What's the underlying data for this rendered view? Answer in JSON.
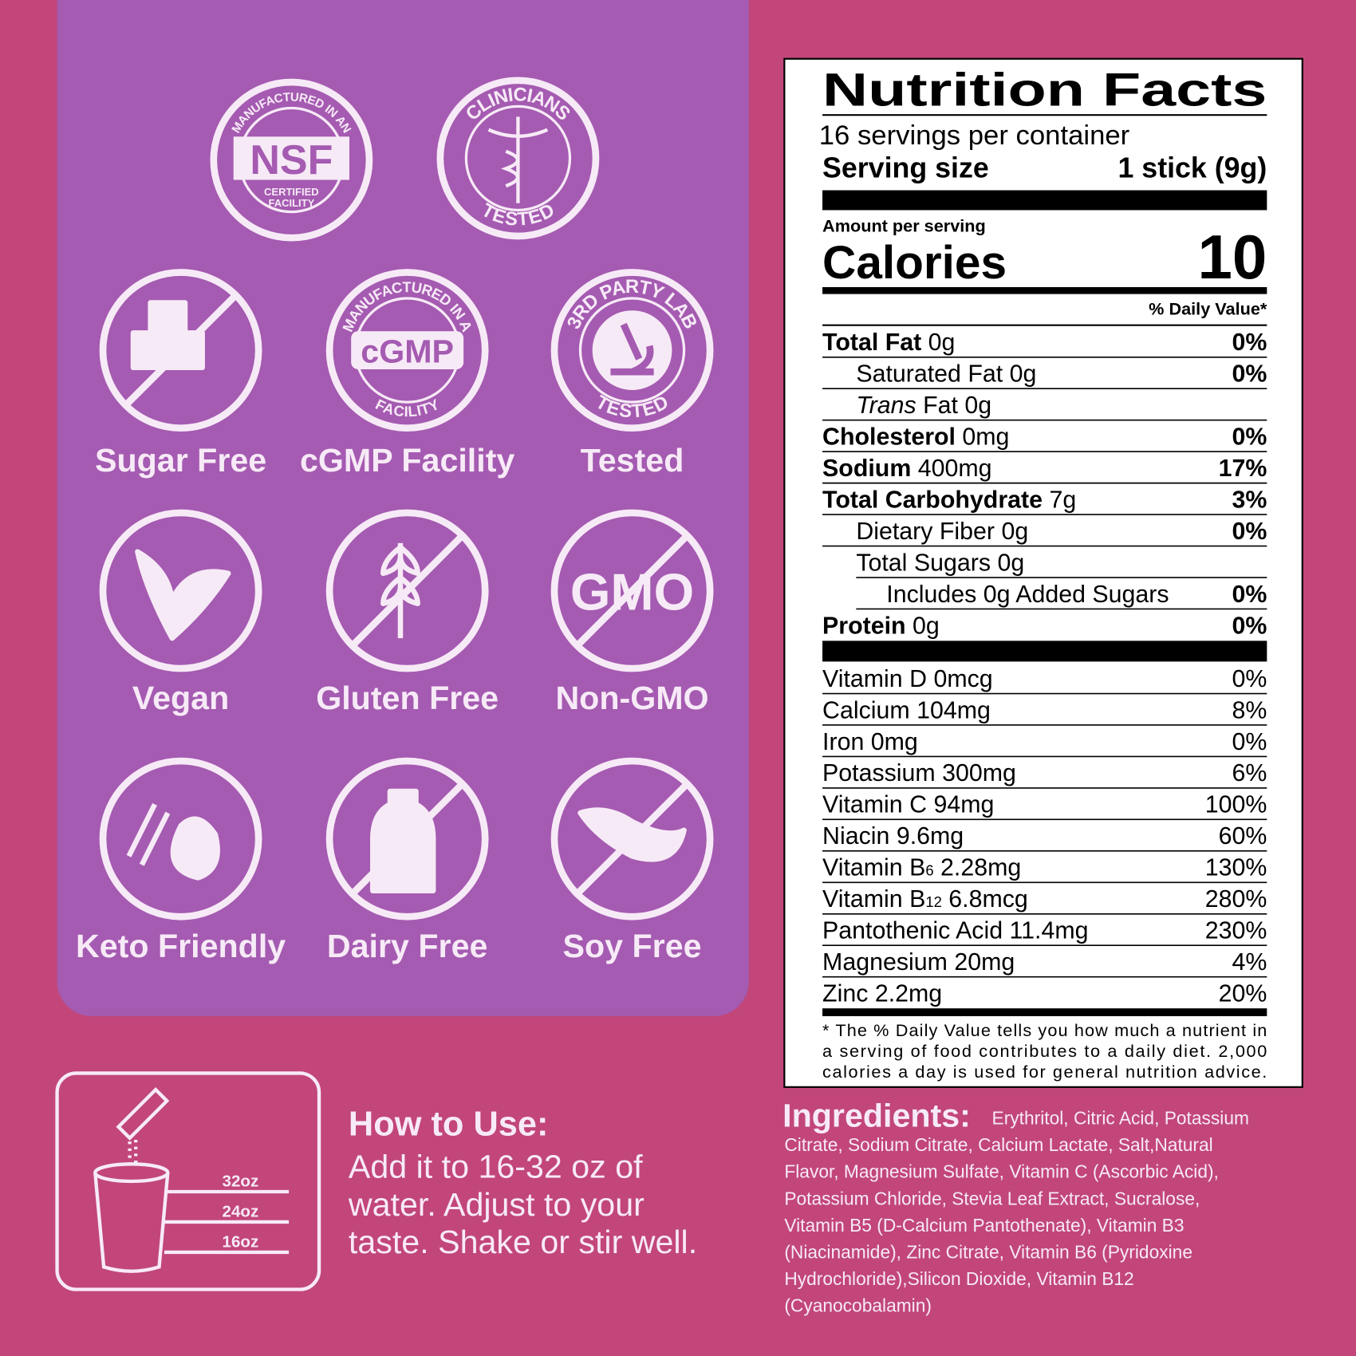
{
  "badges": [
    {
      "top": "MANUFACTURED IN AN",
      "center": "NSF",
      "bottom": "CERTIFIED",
      "bottom2": "FACILITY"
    },
    {
      "top": "CLINICIANS",
      "bottom": "TESTED"
    }
  ],
  "icons": [
    {
      "label": "Sugar Free"
    },
    {
      "label": "cGMP Facility",
      "top": "MANUFACTURED IN A",
      "center": "cGMP",
      "bottom": "FACILITY"
    },
    {
      "label": "Tested",
      "top": "3RD PARTY LAB",
      "bottom": "TESTED"
    },
    {
      "label": "Vegan"
    },
    {
      "label": "Gluten Free"
    },
    {
      "label": "Non-GMO",
      "center": "GMO"
    },
    {
      "label": "Keto Friendly"
    },
    {
      "label": "Dairy Free"
    },
    {
      "label": "Soy Free"
    }
  ],
  "nutrition": {
    "title": "Nutrition Facts",
    "servings": "16 servings per container",
    "serving_size_label": "Serving size",
    "serving_size": "1 stick (9g)",
    "amount_per_serving": "Amount per serving",
    "calories_label": "Calories",
    "calories": "10",
    "dv_header": "% Daily Value*",
    "rows": [
      {
        "name": "Total Fat",
        "amount": "0g",
        "dv": "0%",
        "level": 0
      },
      {
        "name": "Saturated Fat",
        "amount": "0g",
        "dv": "0%",
        "level": 1
      },
      {
        "italic": "Trans",
        "name": "Fat",
        "amount": "0g",
        "level": 1
      },
      {
        "name": "Cholesterol",
        "amount": "0mg",
        "dv": "0%",
        "level": 0
      },
      {
        "name": "Sodium",
        "amount": "400mg",
        "dv": "17%",
        "level": 0
      },
      {
        "name": "Total Carbohydrate",
        "amount": "7g",
        "dv": "3%",
        "level": 0
      },
      {
        "name": "Dietary Fiber",
        "amount": "0g",
        "dv": "0%",
        "level": 1
      },
      {
        "name": "Total Sugars",
        "amount": "0g",
        "level": 1
      },
      {
        "name": "Includes 0g Added Sugars",
        "dv": "0%",
        "level": 2
      },
      {
        "name": "Protein",
        "amount": "0g",
        "dv": "0%",
        "level": 0
      }
    ],
    "vitamins": [
      {
        "name": "Vitamin D",
        "amount": "0mcg",
        "dv": "0%"
      },
      {
        "name": "Calcium",
        "amount": "104mg",
        "dv": "8%"
      },
      {
        "name": "Iron",
        "amount": "0mg",
        "dv": "0%"
      },
      {
        "name": "Potassium",
        "amount": "300mg",
        "dv": "6%"
      },
      {
        "name": "Vitamin C",
        "amount": "94mg",
        "dv": "100%"
      },
      {
        "name": "Niacin",
        "amount": "9.6mg",
        "dv": "60%"
      },
      {
        "name": "Vitamin B",
        "sub": "6",
        "amount": "2.28mg",
        "dv": "130%"
      },
      {
        "name": "Vitamin B",
        "sub": "12",
        "amount": "6.8mcg",
        "dv": "280%"
      },
      {
        "name": "Pantothenic Acid",
        "amount": "11.4mg",
        "dv": "230%"
      },
      {
        "name": "Magnesium",
        "amount": "20mg",
        "dv": "4%"
      },
      {
        "name": "Zinc",
        "amount": "2.2mg",
        "dv": "20%"
      }
    ],
    "footnote": [
      "* The % Daily Value tells you how much a nutrient in",
      "a serving of food contributes to a daily diet. 2,000",
      "calories a day is used for general nutrition advice."
    ]
  },
  "cup_marks": [
    "32oz",
    "24oz",
    "16oz"
  ],
  "how_to_use": {
    "title": "How to Use:",
    "lines": [
      "Add it to 16-32 oz of",
      "water. Adjust to your",
      "taste. Shake or stir well."
    ]
  },
  "ingredients": {
    "label": "Ingredients:",
    "lines": [
      "Erythritol, Citric Acid, Potassium",
      "Citrate, Sodium Citrate, Calcium Lactate, Salt,Natural",
      "Flavor, Magnesium Sulfate, Vitamin C (Ascorbic Acid),",
      "Potassium Chloride, Stevia Leaf Extract, Sucralose,",
      "Vitamin B5 (D-Calcium Pantothenate), Vitamin B3",
      "(Niacinamide), Zinc Citrate, Vitamin B6 (Pyridoxine",
      "Hydrochloride),Silicon Dioxide, Vitamin B12",
      "(Cyanocobalamin)"
    ]
  }
}
